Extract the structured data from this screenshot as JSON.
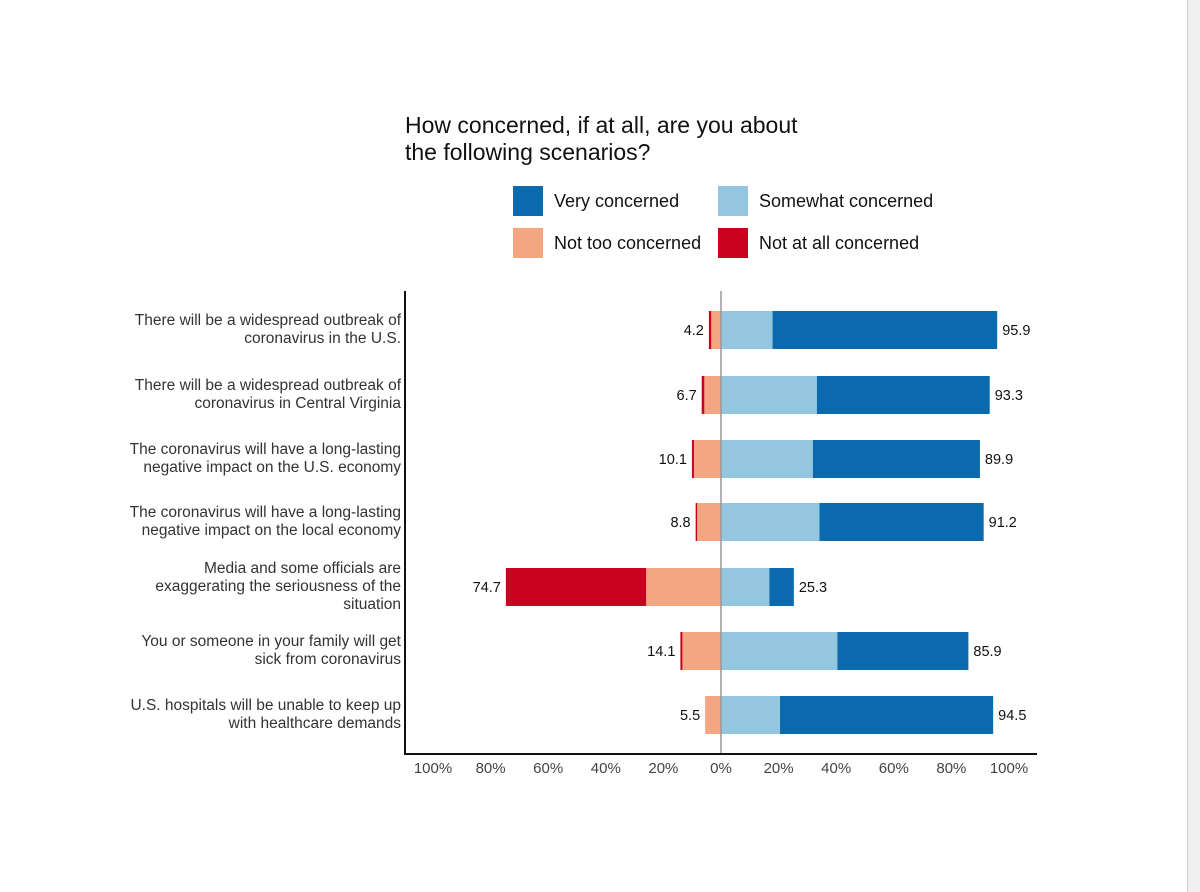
{
  "chart_data": {
    "type": "bar",
    "orientation": "horizontal",
    "stacked": "diverging",
    "title": "How concerned, if at all, are you about\nthe following scenarios?",
    "xlabel": "",
    "ylabel": "",
    "xlim": [
      -100,
      100
    ],
    "x_ticks": [
      "100%",
      "80%",
      "60%",
      "40%",
      "20%",
      "0%",
      "20%",
      "40%",
      "60%",
      "80%",
      "100%"
    ],
    "grid": false,
    "legend_position": "top",
    "categories": [
      "There will be a widespread outbreak of\ncoronavirus in the U.S.",
      "There will be a widespread outbreak of\ncoronavirus in Central Virginia",
      "The coronavirus will have a long-lasting\nnegative impact on the U.S. economy",
      "The coronavirus will have a long-lasting\nnegative impact on the local economy",
      "Media and some officials are\nexaggerating the seriousness of the\nsituation",
      "You or someone in your family will get\nsick from coronavirus",
      "U.S. hospitals will be unable to keep up\nwith healthcare demands"
    ],
    "series": [
      {
        "name": "Very concerned",
        "side": "positive",
        "color": "#0a6aad",
        "values": [
          78,
          60,
          58,
          57,
          8.5,
          45.5,
          74
        ]
      },
      {
        "name": "Somewhat concerned",
        "side": "positive",
        "color": "#94c6e0",
        "values": [
          17.9,
          33.3,
          31.9,
          34.2,
          16.8,
          40.4,
          20.5
        ]
      },
      {
        "name": "Not too concerned",
        "side": "negative",
        "color": "#f4a582",
        "values": [
          3.4,
          5.8,
          9.4,
          8.3,
          26,
          13.4,
          5.5
        ]
      },
      {
        "name": "Not at all concerned",
        "side": "negative",
        "color": "#c9001e",
        "values": [
          0.8,
          0.9,
          0.7,
          0.5,
          48.7,
          0.7,
          0
        ]
      }
    ],
    "data_labels": {
      "negative": [
        "4.2",
        "6.7",
        "10.1",
        "8.8",
        "74.7",
        "14.1",
        "5.5"
      ],
      "positive": [
        "95.9",
        "93.3",
        "89.9",
        "91.2",
        "25.3",
        "85.9",
        "94.5"
      ]
    }
  }
}
